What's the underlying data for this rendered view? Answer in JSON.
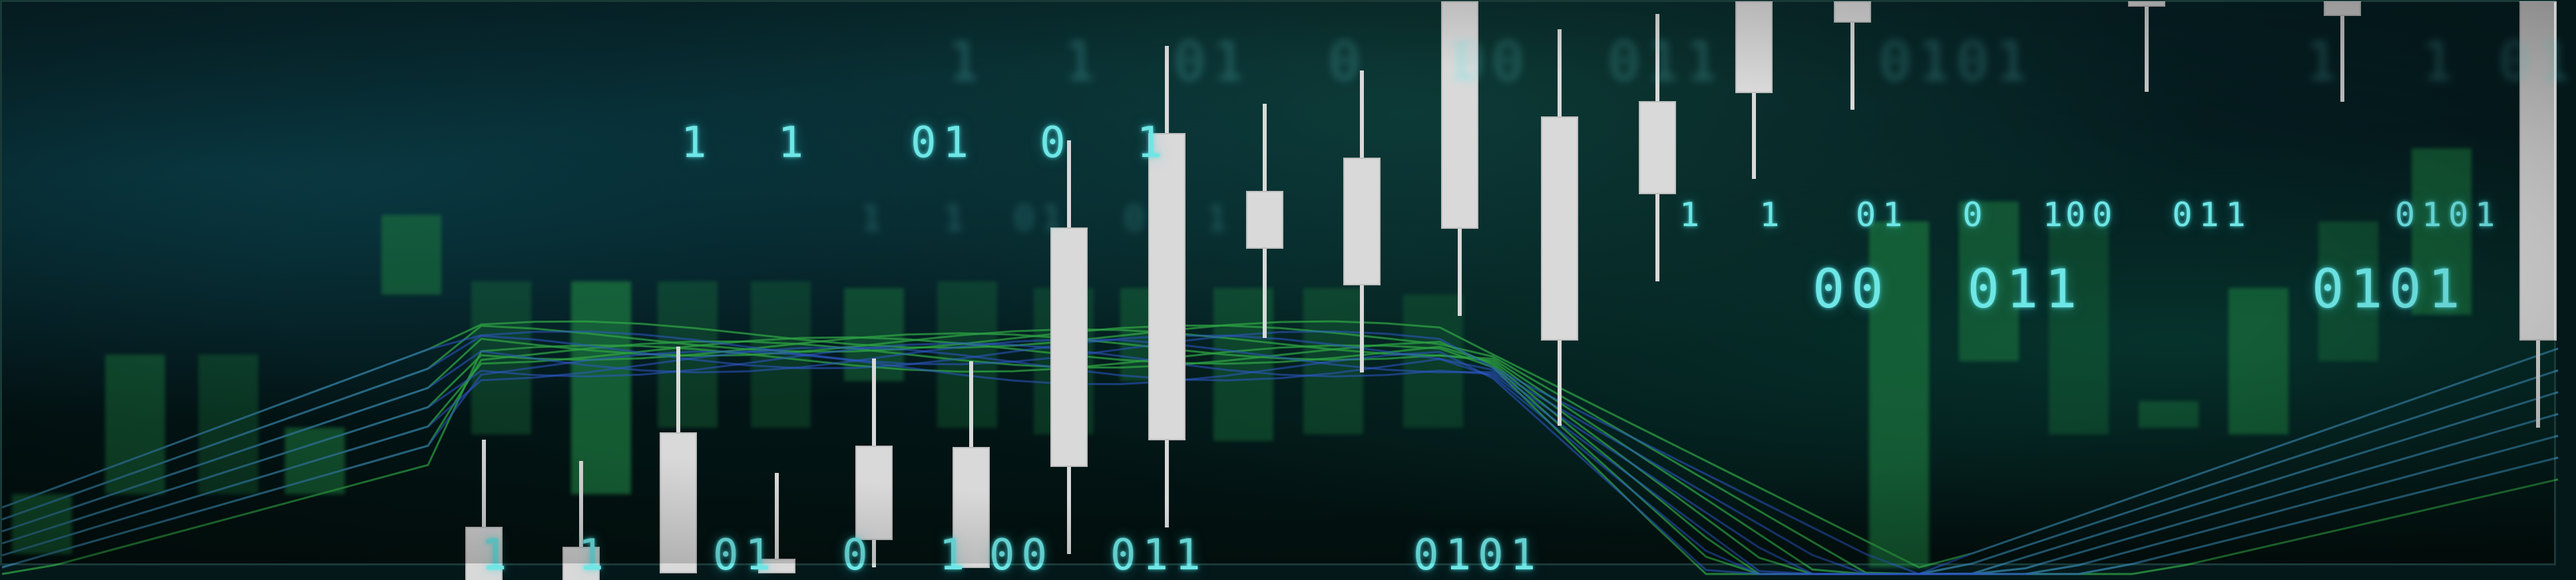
{
  "colors": {
    "candle_fg": "#d9d9d9",
    "candle_bg_green": "#1f7a3f",
    "digits": "#6fe6e6",
    "line_green": "#2ea043",
    "line_blue": "#2d58c8"
  },
  "digit_rows": {
    "row_a": [
      "1  1",
      "01  0  1",
      "1  1",
      "01  0  1",
      "00  011"
    ],
    "row_b": [
      "0101",
      "00  011",
      "0101",
      "1  1"
    ],
    "row_c": [
      "1  1",
      "01  0  1",
      "00  011",
      "0101"
    ],
    "row_d": [
      "1  1",
      "01  0  1",
      "00",
      "011",
      "0101"
    ]
  },
  "blurred_digits": [
    "1  1",
    "01  0  1",
    "00  011",
    "0101",
    "1  1 01"
  ]
}
